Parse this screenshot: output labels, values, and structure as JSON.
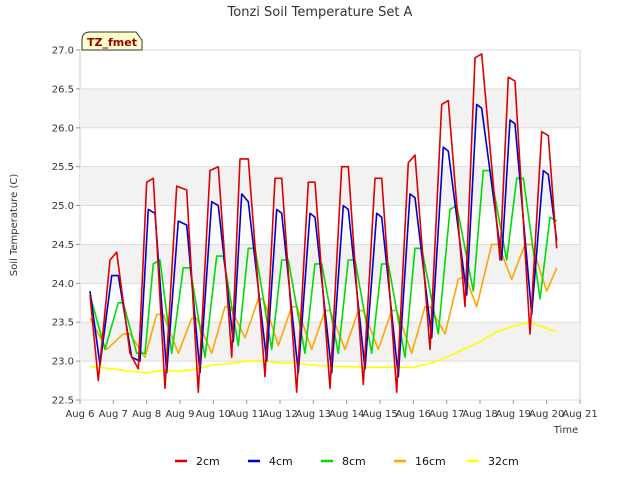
{
  "chart_data": {
    "type": "line",
    "title": "Tonzi Soil Temperature Set A",
    "xlabel": "Time",
    "ylabel": "Soil Temperature (C)",
    "badge": "TZ_fmet",
    "xlim": [
      6,
      21
    ],
    "ylim": [
      22.5,
      27.0
    ],
    "x_ticks": [
      6,
      7,
      8,
      9,
      10,
      11,
      12,
      13,
      14,
      15,
      16,
      17,
      18,
      19,
      20,
      21
    ],
    "x_tick_labels": [
      "Aug 6",
      "Aug 7",
      "Aug 8",
      "Aug 9",
      "Aug 10",
      "Aug 11",
      "Aug 12",
      "Aug 13",
      "Aug 14",
      "Aug 15",
      "Aug 16",
      "Aug 17",
      "Aug 18",
      "Aug 19",
      "Aug 20",
      "Aug 21"
    ],
    "y_ticks": [
      22.5,
      23.0,
      23.5,
      24.0,
      24.5,
      25.0,
      25.5,
      26.0,
      26.5,
      27.0
    ],
    "y_tick_labels": [
      "22.5",
      "23.0",
      "23.5",
      "24.0",
      "24.5",
      "25.0",
      "25.5",
      "26.0",
      "26.5",
      "27.0"
    ],
    "grid": "horizontal bands",
    "legend_placement": "bottom",
    "series": [
      {
        "name": "2cm",
        "color": "#dd0000",
        "x": [
          6.3,
          6.55,
          6.9,
          7.1,
          7.5,
          7.75,
          8.0,
          8.2,
          8.55,
          8.9,
          9.2,
          9.55,
          9.9,
          10.15,
          10.55,
          10.8,
          11.05,
          11.55,
          11.85,
          12.05,
          12.5,
          12.85,
          13.05,
          13.5,
          13.85,
          14.05,
          14.5,
          14.85,
          15.05,
          15.5,
          15.85,
          16.05,
          16.5,
          16.85,
          17.05,
          17.55,
          17.85,
          18.05,
          18.6,
          18.85,
          19.05,
          19.5,
          19.85,
          20.05,
          20.3
        ],
        "y": [
          23.85,
          22.75,
          24.3,
          24.4,
          23.1,
          22.9,
          25.3,
          25.35,
          22.65,
          25.25,
          25.2,
          22.6,
          25.45,
          25.5,
          23.05,
          25.6,
          25.6,
          22.8,
          25.35,
          25.35,
          22.6,
          25.3,
          25.3,
          22.65,
          25.5,
          25.5,
          22.7,
          25.35,
          25.35,
          22.6,
          25.55,
          25.65,
          23.15,
          26.3,
          26.35,
          23.7,
          26.9,
          26.95,
          24.3,
          26.65,
          26.6,
          23.35,
          25.95,
          25.9,
          24.45
        ]
      },
      {
        "name": "4cm",
        "color": "#0000cc",
        "x": [
          6.3,
          6.6,
          6.95,
          7.15,
          7.55,
          7.8,
          8.05,
          8.25,
          8.6,
          8.95,
          9.2,
          9.6,
          9.95,
          10.15,
          10.6,
          10.85,
          11.05,
          11.6,
          11.9,
          12.05,
          12.55,
          12.9,
          13.05,
          13.55,
          13.9,
          14.05,
          14.55,
          14.9,
          15.05,
          15.55,
          15.9,
          16.05,
          16.55,
          16.9,
          17.05,
          17.6,
          17.9,
          18.05,
          18.65,
          18.9,
          19.05,
          19.55,
          19.9,
          20.05,
          20.3
        ],
        "y": [
          23.9,
          22.95,
          24.1,
          24.1,
          23.05,
          23.0,
          24.95,
          24.9,
          22.85,
          24.8,
          24.75,
          22.85,
          25.05,
          25.0,
          23.25,
          25.15,
          25.05,
          23.0,
          24.95,
          24.9,
          22.85,
          24.9,
          24.85,
          22.85,
          25.0,
          24.95,
          22.9,
          24.9,
          24.85,
          22.8,
          25.15,
          25.1,
          23.3,
          25.75,
          25.7,
          23.85,
          26.3,
          26.25,
          24.3,
          26.1,
          26.05,
          23.6,
          25.45,
          25.4,
          24.55
        ]
      },
      {
        "name": "8cm",
        "color": "#00dd00",
        "x": [
          6.3,
          6.75,
          7.15,
          7.3,
          7.7,
          7.95,
          8.2,
          8.4,
          8.75,
          9.1,
          9.3,
          9.75,
          10.1,
          10.3,
          10.75,
          11.05,
          11.25,
          11.75,
          12.05,
          12.25,
          12.75,
          13.05,
          13.25,
          13.75,
          14.05,
          14.25,
          14.75,
          15.05,
          15.25,
          15.75,
          16.05,
          16.25,
          16.75,
          17.1,
          17.3,
          17.8,
          18.1,
          18.3,
          18.8,
          19.1,
          19.3,
          19.8,
          20.1,
          20.3
        ],
        "y": [
          23.85,
          23.15,
          23.75,
          23.75,
          23.1,
          23.1,
          24.25,
          24.3,
          23.1,
          24.2,
          24.2,
          23.05,
          24.35,
          24.35,
          23.2,
          24.45,
          24.45,
          23.15,
          24.3,
          24.3,
          23.1,
          24.25,
          24.25,
          23.1,
          24.3,
          24.3,
          23.1,
          24.25,
          24.25,
          23.05,
          24.45,
          24.45,
          23.35,
          24.95,
          25.0,
          23.9,
          25.45,
          25.45,
          24.3,
          25.35,
          25.35,
          23.8,
          24.85,
          24.8
        ]
      },
      {
        "name": "16cm",
        "color": "#ffa500",
        "x": [
          6.3,
          6.8,
          7.3,
          7.5,
          7.95,
          8.3,
          8.5,
          8.95,
          9.35,
          9.5,
          9.95,
          10.35,
          10.5,
          10.95,
          11.35,
          11.5,
          11.95,
          12.35,
          12.5,
          12.95,
          13.35,
          13.5,
          13.95,
          14.35,
          14.5,
          14.95,
          15.35,
          15.5,
          15.95,
          16.35,
          16.5,
          16.95,
          17.35,
          17.55,
          17.9,
          18.35,
          18.55,
          18.95,
          19.35,
          19.55,
          20.0,
          20.3
        ],
        "y": [
          23.55,
          23.15,
          23.35,
          23.35,
          23.05,
          23.6,
          23.6,
          23.1,
          23.55,
          23.55,
          23.1,
          23.7,
          23.7,
          23.3,
          23.8,
          23.8,
          23.2,
          23.7,
          23.7,
          23.15,
          23.65,
          23.65,
          23.15,
          23.65,
          23.65,
          23.15,
          23.65,
          23.65,
          23.1,
          23.7,
          23.7,
          23.35,
          24.05,
          24.1,
          23.7,
          24.5,
          24.5,
          24.05,
          24.5,
          24.5,
          23.9,
          24.2
        ]
      },
      {
        "name": "32cm",
        "color": "#ffff00",
        "x": [
          6.3,
          7.0,
          7.5,
          8.0,
          8.5,
          9.0,
          9.5,
          10.0,
          10.5,
          11.0,
          11.5,
          12.0,
          12.5,
          13.0,
          13.5,
          14.0,
          14.5,
          15.0,
          15.5,
          16.0,
          16.5,
          17.0,
          17.5,
          18.0,
          18.5,
          19.0,
          19.5,
          20.0,
          20.3
        ],
        "y": [
          22.93,
          22.9,
          22.87,
          22.85,
          22.88,
          22.87,
          22.9,
          22.95,
          22.97,
          23.0,
          23.0,
          22.98,
          22.97,
          22.95,
          22.93,
          22.93,
          22.92,
          22.92,
          22.92,
          22.92,
          22.97,
          23.05,
          23.15,
          23.25,
          23.38,
          23.45,
          23.5,
          23.42,
          23.38
        ]
      }
    ]
  }
}
